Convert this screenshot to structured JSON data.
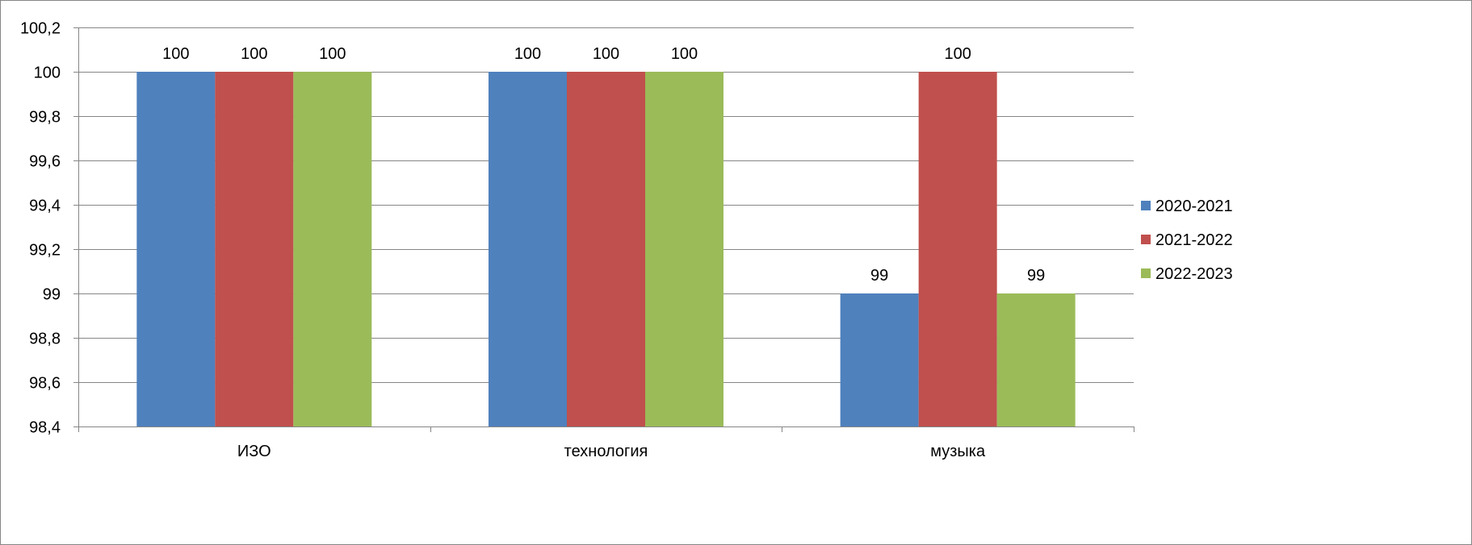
{
  "chart_data": {
    "type": "bar",
    "categories": [
      "ИЗО",
      "технология",
      "музыка"
    ],
    "series": [
      {
        "name": "2020-2021",
        "values": [
          100,
          100,
          99
        ],
        "color": "#4F81BD"
      },
      {
        "name": "2021-2022",
        "values": [
          100,
          100,
          100
        ],
        "color": "#C0504D"
      },
      {
        "name": "2022-2023",
        "values": [
          100,
          100,
          99
        ],
        "color": "#9BBB59"
      }
    ],
    "data_labels": [
      [
        "100",
        "100",
        "99"
      ],
      [
        "100",
        "100",
        "100"
      ],
      [
        "100",
        "100",
        "99"
      ]
    ],
    "ylim": [
      98.4,
      100.2
    ],
    "y_ticks": [
      {
        "value": 98.4,
        "label": "98,4"
      },
      {
        "value": 98.6,
        "label": "98,6"
      },
      {
        "value": 98.8,
        "label": "98,8"
      },
      {
        "value": 99.0,
        "label": "99"
      },
      {
        "value": 99.2,
        "label": "99,2"
      },
      {
        "value": 99.4,
        "label": "99,4"
      },
      {
        "value": 99.6,
        "label": "99,6"
      },
      {
        "value": 99.8,
        "label": "99,8"
      },
      {
        "value": 100.0,
        "label": "100"
      },
      {
        "value": 100.2,
        "label": "100,2"
      }
    ],
    "grid": true,
    "legend_position": "right"
  }
}
